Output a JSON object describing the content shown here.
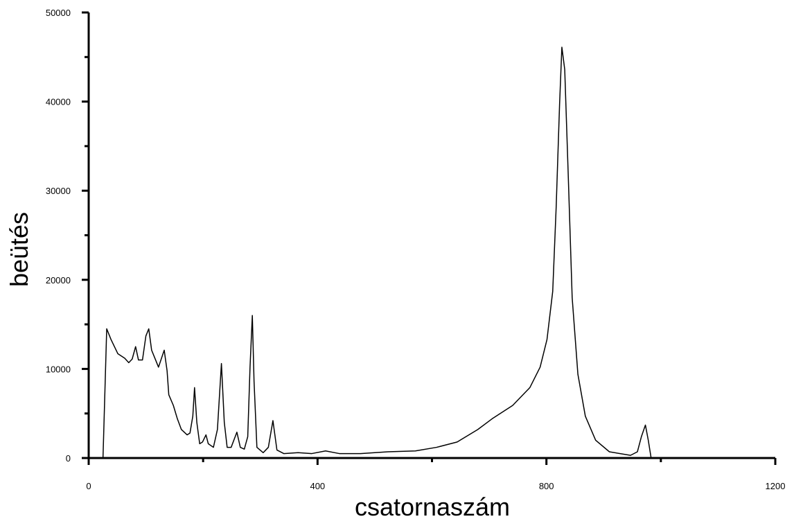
{
  "chart_data": {
    "type": "line",
    "x_label": "csatornaszám",
    "y_label": "beütés",
    "xlim": [
      0,
      1200
    ],
    "ylim": [
      0,
      50000
    ],
    "xticks": [
      0,
      400,
      800,
      1200
    ],
    "yticks": [
      0,
      10000,
      20000,
      30000,
      40000,
      50000
    ],
    "x_minor_ticks": [
      200,
      600,
      1000
    ],
    "y_minor_ticks": [
      5000,
      15000,
      25000,
      35000,
      45000
    ],
    "grid": false,
    "series": [
      {
        "color": "#000000",
        "x": [
          25,
          31.5,
          39,
          51,
          63,
          70,
          76,
          82,
          87,
          94,
          100,
          105,
          110,
          117,
          122,
          132,
          137,
          140,
          148,
          155,
          162,
          172,
          177,
          182,
          185,
          189,
          194,
          199,
          205,
          209,
          218,
          225,
          232,
          237,
          242,
          249,
          259,
          265,
          272,
          278,
          282,
          286,
          289,
          294,
          305,
          314,
          322,
          329,
          341,
          366,
          390,
          414,
          438,
          475,
          523,
          571,
          608,
          644,
          680,
          705,
          741,
          771,
          789,
          801,
          811,
          817,
          823,
          827,
          832,
          838,
          845,
          855,
          868,
          886,
          910,
          947,
          959,
          966,
          973,
          978,
          983
        ],
        "values": [
          0,
          14500,
          13300,
          11700,
          11200,
          10700,
          11100,
          12500,
          11000,
          11000,
          13700,
          14500,
          12100,
          11000,
          10200,
          12100,
          9800,
          7100,
          5900,
          4400,
          3200,
          2600,
          2800,
          4700,
          7900,
          4000,
          1600,
          1800,
          2600,
          1600,
          1200,
          3200,
          10600,
          4000,
          1200,
          1200,
          2900,
          1200,
          1000,
          2400,
          10200,
          16000,
          8600,
          1200,
          600,
          1200,
          4200,
          900,
          500,
          600,
          500,
          800,
          500,
          500,
          700,
          800,
          1200,
          1800,
          3200,
          4400,
          5900,
          7900,
          10200,
          13300,
          18700,
          28100,
          39700,
          46100,
          43600,
          32000,
          18000,
          9400,
          4700,
          2000,
          700,
          300,
          700,
          2400,
          3700,
          2000,
          0
        ]
      }
    ]
  }
}
